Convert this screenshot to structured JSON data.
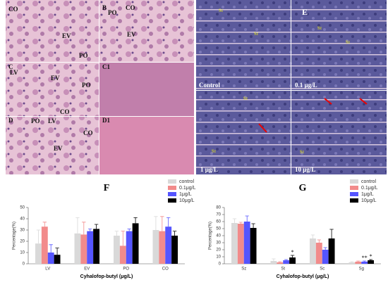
{
  "panels": {
    "a": [
      "CO",
      "EV",
      "PO"
    ],
    "b": [
      "B",
      "PO",
      "CO",
      "EV"
    ],
    "c": [
      "C",
      "LV",
      "EV",
      "PO",
      "CO"
    ],
    "c1": [
      "C1"
    ],
    "d": [
      "D",
      "PO",
      "LV",
      "CO",
      "EV"
    ],
    "d1": [
      "D1"
    ],
    "e": [
      "E",
      "Sz",
      "Sz",
      "Sz",
      "Sz",
      "Control",
      "0.1 μg/L",
      "Sz",
      "Sz",
      "Sz",
      "1 μg/L",
      "10 μg/L"
    ]
  },
  "chart_data": [
    {
      "type": "bar",
      "title": "F",
      "ylabel": "Percentage(%)",
      "xlabel": "Cyhalofop-butyl (μg/L)",
      "categories": [
        "LV",
        "EV",
        "PO",
        "CO"
      ],
      "ylim": [
        0,
        50
      ],
      "yticks": [
        0,
        10,
        20,
        30,
        40,
        50
      ],
      "series": [
        {
          "name": "control",
          "color": "#d9d9d9",
          "values": [
            18,
            27,
            25,
            30
          ],
          "errors": [
            12,
            14,
            4,
            12
          ]
        },
        {
          "name": "0.1μg/L",
          "color": "#f28b8b",
          "values": [
            33,
            26,
            16,
            29
          ],
          "errors": [
            4,
            11,
            13,
            13
          ]
        },
        {
          "name": "1μg/L",
          "color": "#5555ff",
          "values": [
            10,
            29,
            29,
            33
          ],
          "errors": [
            7,
            2,
            2,
            8
          ]
        },
        {
          "name": "10μg/L",
          "color": "#000000",
          "values": [
            8,
            31,
            36,
            25
          ],
          "errors": [
            6,
            4,
            5,
            4
          ]
        }
      ]
    },
    {
      "type": "bar",
      "title": "G",
      "ylabel": "Percentage(%)",
      "xlabel": "Cyhalofop-butyl (μg/L)",
      "categories": [
        "Sz",
        "St",
        "Sc",
        "Sg"
      ],
      "ylim": [
        0,
        80
      ],
      "yticks": [
        0,
        10,
        20,
        30,
        40,
        50,
        60,
        70,
        80
      ],
      "series": [
        {
          "name": "control",
          "color": "#d9d9d9",
          "values": [
            58,
            4,
            36,
            2
          ],
          "errors": [
            6,
            3,
            5,
            1
          ]
        },
        {
          "name": "0.1μg/L",
          "color": "#f28b8b",
          "values": [
            57,
            2,
            30,
            3
          ],
          "errors": [
            2,
            1,
            4,
            1
          ]
        },
        {
          "name": "1μg/L",
          "color": "#5555ff",
          "values": [
            60,
            5,
            20,
            3
          ],
          "errors": [
            8,
            1,
            3,
            1
          ],
          "significance": [
            null,
            null,
            null,
            "**"
          ]
        },
        {
          "name": "10μg/L",
          "color": "#000000",
          "values": [
            51,
            9,
            36,
            5
          ],
          "errors": [
            6,
            3,
            13,
            1
          ],
          "significance": [
            null,
            "*",
            null,
            "*"
          ]
        }
      ]
    }
  ]
}
